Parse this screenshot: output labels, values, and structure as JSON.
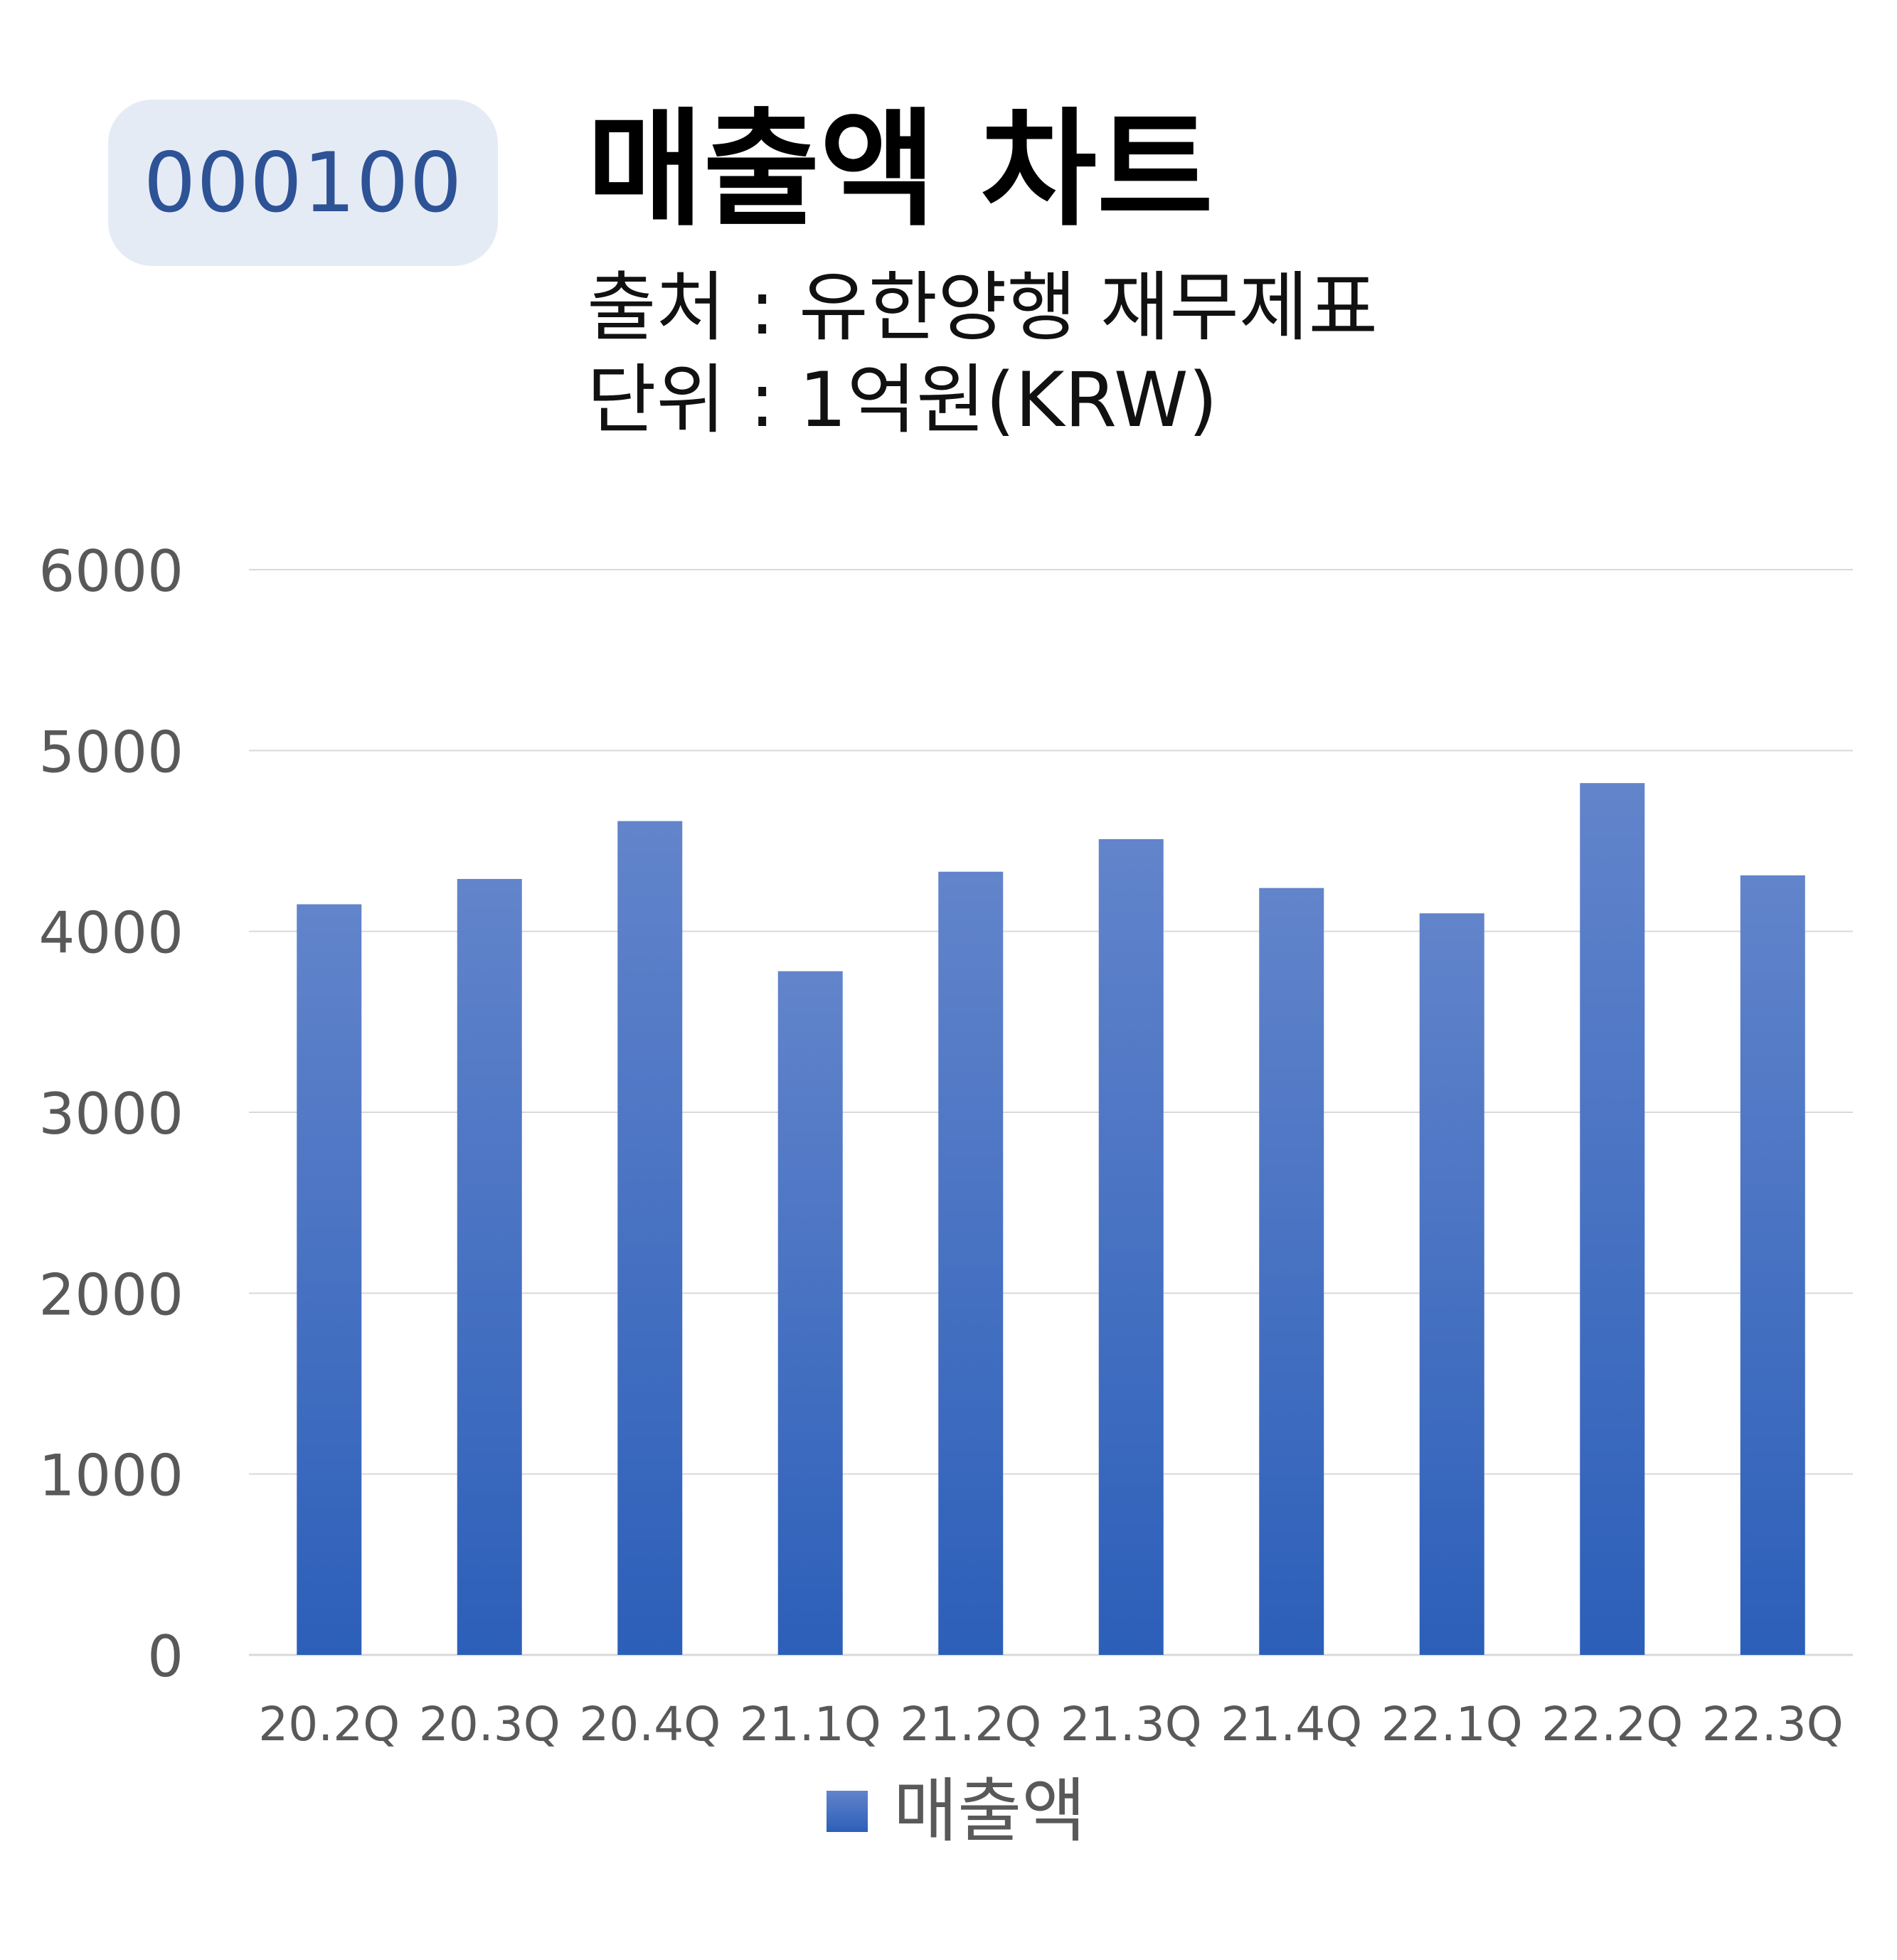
{
  "header": {
    "badge": "000100",
    "title": "매출액 차트",
    "source": "출처 : 유한양행 재무제표",
    "unit": "단위 : 1억원(KRW)"
  },
  "chart_data": {
    "type": "bar",
    "categories": [
      "20.2Q",
      "20.3Q",
      "20.4Q",
      "21.1Q",
      "21.2Q",
      "21.3Q",
      "21.4Q",
      "22.1Q",
      "22.2Q",
      "22.3Q"
    ],
    "series": [
      {
        "name": "매출액",
        "values": [
          4150,
          4290,
          4610,
          3780,
          4330,
          4510,
          4240,
          4100,
          4820,
          4310
        ]
      }
    ],
    "ylim": [
      0,
      6000
    ],
    "yticks": [
      "0",
      "1000",
      "2000",
      "3000",
      "4000",
      "5000",
      "6000"
    ],
    "grid": true,
    "legend": "bottom-center",
    "colors": {
      "bar_top": "#6284cb",
      "bar_bottom": "#2c5fb9",
      "grid": "#d9d9d9",
      "axis_text": "#595959"
    }
  }
}
